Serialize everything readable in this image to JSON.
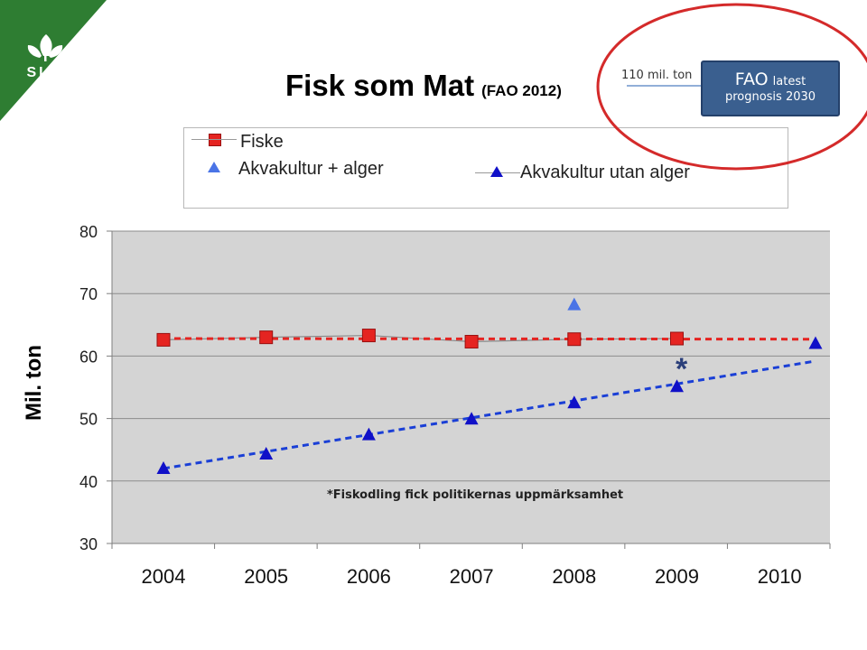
{
  "logo": {
    "text": "SLU",
    "color": "#2e7d32"
  },
  "title": {
    "main": "Fisk som Mat",
    "source": "(FAO 2012)"
  },
  "fao_callout": {
    "word1": "FAO",
    "word2": "latest",
    "line2": "prognosis 2030",
    "ton_label": "110 mil. ton",
    "ellipse_color": "#d42a2a"
  },
  "note": "*Fiskodling fick politikernas uppmärksamhet",
  "star": "*",
  "chart_data": {
    "type": "line",
    "ylabel": "Mil. ton",
    "ylim": [
      30,
      80
    ],
    "y_ticks": [
      "30",
      "40",
      "50",
      "60",
      "70",
      "80"
    ],
    "x_ticks": [
      "2004",
      "2005",
      "2006",
      "2007",
      "2008",
      "2009",
      "2010"
    ],
    "grid": true,
    "plot_bg": "#d4d4d4",
    "legend_position": "top",
    "series": [
      {
        "name": "Fiske",
        "color": "#e52421",
        "marker": "square",
        "x": [
          2004,
          2005,
          2006,
          2007,
          2008,
          2009
        ],
        "values": [
          62.6,
          63.0,
          63.3,
          62.3,
          62.7,
          62.8
        ],
        "trend": {
          "x": [
            2004,
            2010.3
          ],
          "values": [
            62.8,
            62.7
          ],
          "color": "#e52421"
        }
      },
      {
        "name": "Akvakultur + alger",
        "color": "#4a74e6",
        "marker": "triangle",
        "x": [
          2008
        ],
        "values": [
          68.2
        ]
      },
      {
        "name": "Akvakultur utan alger",
        "color": "#1010c8",
        "marker": "triangle",
        "x": [
          2004,
          2005,
          2006,
          2007,
          2008,
          2009,
          2010.35
        ],
        "values": [
          42.0,
          44.3,
          47.4,
          49.9,
          52.5,
          55.1,
          62.0
        ],
        "trend": {
          "x": [
            2004,
            2010.35
          ],
          "values": [
            42.0,
            59.2
          ],
          "color": "#1a3fd6"
        }
      }
    ]
  }
}
